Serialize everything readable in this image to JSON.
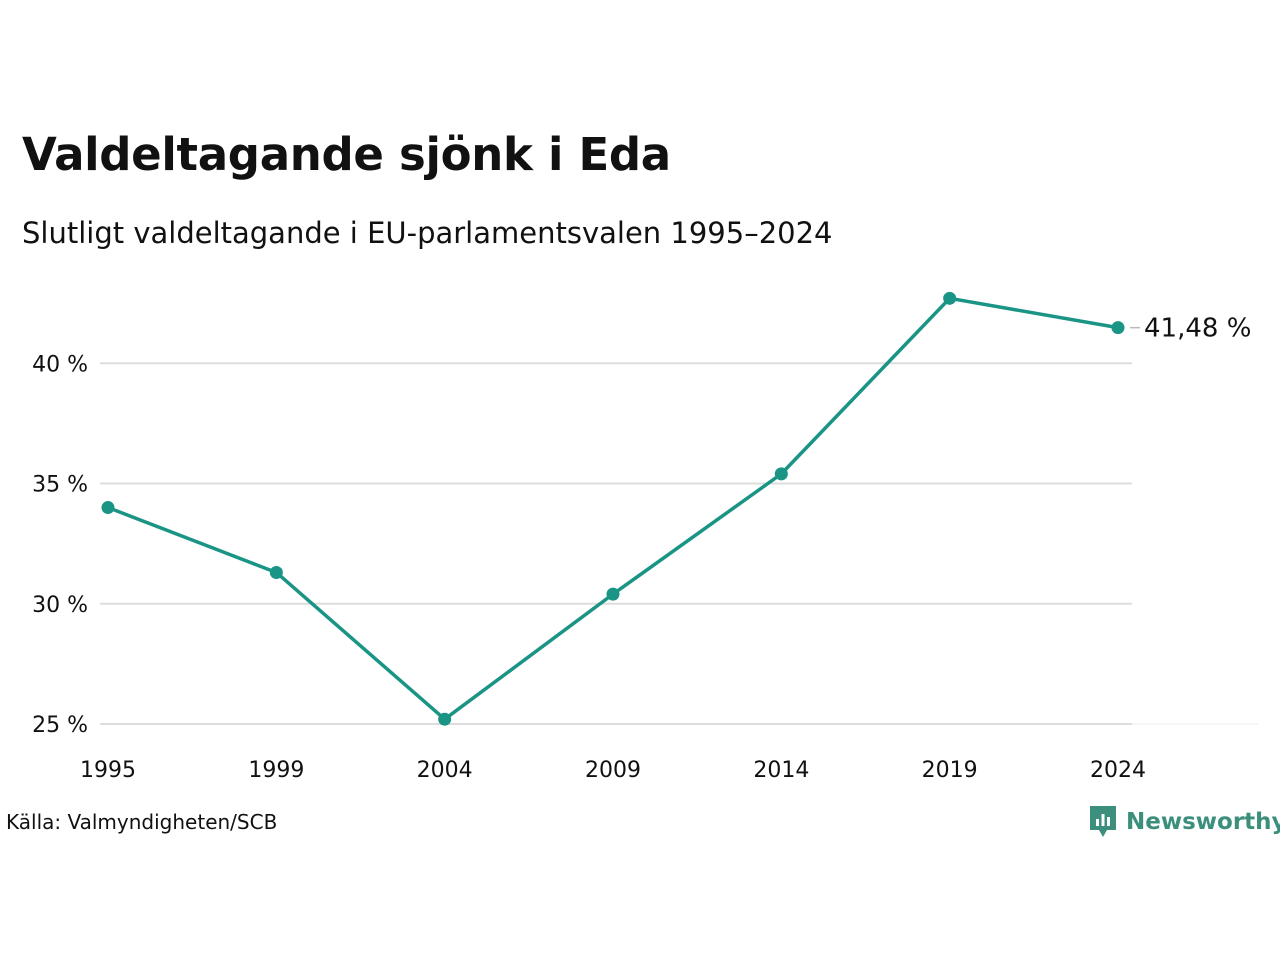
{
  "title": "Valdeltagande sjönk i Eda",
  "subtitle": "Slutligt valdeltagande i EU-parlamentsvalen 1995–2024",
  "source": "Källa: Valmyndigheten/SCB",
  "brand": {
    "name": "Newsworthy",
    "logo_icon": "newsworthy-chart-logo-icon",
    "color": "#3d8f7d"
  },
  "colors": {
    "line": "#1a9485",
    "grid": "#dddddd",
    "text": "#111111"
  },
  "chart_data": {
    "type": "line",
    "x": [
      "1995",
      "1999",
      "2004",
      "2009",
      "2014",
      "2019",
      "2024"
    ],
    "series": [
      {
        "values": [
          34.0,
          31.3,
          25.2,
          30.4,
          35.4,
          42.7,
          41.48
        ]
      }
    ],
    "ylim": [
      25,
      43
    ],
    "yticks": [
      25,
      30,
      35,
      40
    ],
    "ytick_labels": [
      "25 %",
      "30 %",
      "35 %",
      "40 %"
    ],
    "end_label": "41,48 %",
    "grid": true,
    "legend": "none"
  }
}
